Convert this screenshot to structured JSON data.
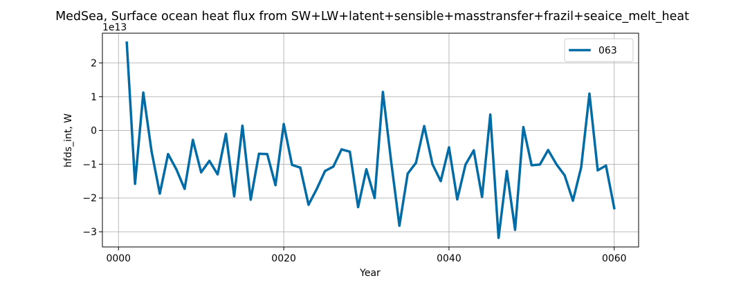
{
  "chart_data": {
    "type": "line",
    "title": "MedSea, Surface ocean heat flux from SW+LW+latent+sensible+masstransfer+frazil+seaice_melt_heat",
    "xlabel": "Year",
    "ylabel": "hfds_int, W",
    "y_offset_label": "1e13",
    "xlim": [
      -1.95,
      62.95
    ],
    "ylim": [
      -3.45,
      2.88
    ],
    "x_ticks": [
      0,
      20,
      40,
      60
    ],
    "x_tick_labels": [
      "0000",
      "0020",
      "0040",
      "0060"
    ],
    "y_ticks": [
      -3,
      -2,
      -1,
      0,
      1,
      2
    ],
    "y_tick_labels": [
      "−3",
      "−2",
      "−1",
      "0",
      "1",
      "2"
    ],
    "grid": true,
    "legend_position": "top-right",
    "series": [
      {
        "name": "063",
        "color": "#006ba4",
        "x": [
          1,
          2,
          3,
          4,
          5,
          6,
          7,
          8,
          9,
          10,
          11,
          12,
          13,
          14,
          15,
          16,
          17,
          18,
          19,
          20,
          21,
          22,
          23,
          24,
          25,
          26,
          27,
          28,
          29,
          30,
          31,
          32,
          33,
          34,
          35,
          36,
          37,
          38,
          39,
          40,
          41,
          42,
          43,
          44,
          45,
          46,
          47,
          48,
          49,
          50,
          51,
          52,
          53,
          54,
          55,
          56,
          57,
          58,
          59,
          60
        ],
        "y": [
          2.6,
          -1.58,
          1.12,
          -0.62,
          -1.87,
          -0.7,
          -1.15,
          -1.73,
          -0.28,
          -1.24,
          -0.9,
          -1.3,
          -0.1,
          -1.95,
          0.14,
          -2.05,
          -0.69,
          -0.7,
          -1.62,
          0.19,
          -1.02,
          -1.1,
          -2.2,
          -1.73,
          -1.2,
          -1.07,
          -0.56,
          -0.63,
          -2.27,
          -1.15,
          -2.0,
          1.14,
          -0.92,
          -2.82,
          -1.28,
          -0.96,
          0.13,
          -1.0,
          -1.5,
          -0.5,
          -2.04,
          -1.01,
          -0.59,
          -1.97,
          0.47,
          -3.18,
          -1.2,
          -2.94,
          0.1,
          -1.03,
          -1.01,
          -0.58,
          -1.0,
          -1.33,
          -2.08,
          -1.09,
          1.09,
          -1.18,
          -1.04,
          -2.3
        ]
      }
    ]
  }
}
